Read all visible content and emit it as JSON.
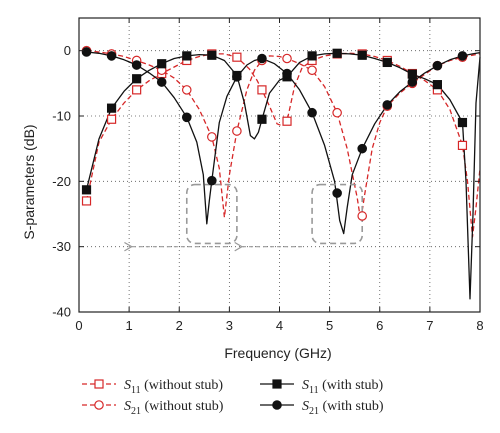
{
  "chart_data": {
    "type": "line",
    "xlabel": "Frequency (GHz)",
    "ylabel": "S-parameters (dB)",
    "xlim": [
      0,
      8
    ],
    "ylim": [
      -40,
      5
    ],
    "xticks": [
      0,
      1,
      2,
      3,
      4,
      5,
      6,
      7,
      8
    ],
    "yticks": [
      0,
      -10,
      -20,
      -30,
      -40
    ],
    "grid": true,
    "legend_position": "bottom",
    "colors": {
      "without_stub": "#d62728",
      "with_stub": "#111111"
    },
    "series": [
      {
        "key": "s11_without",
        "name_sym": "S",
        "name_sub": "11",
        "name_rest": " (without stub)",
        "line": "dashed",
        "marker": "open-square",
        "color": "#d62728",
        "x": [
          0.15,
          0.65,
          1.15,
          1.65,
          2.15,
          2.65,
          3.15,
          3.65,
          4.15,
          4.65,
          5.15,
          5.65,
          6.15,
          6.65,
          7.15,
          7.65
        ],
        "y": [
          -23,
          -10.5,
          -6,
          -3.5,
          -1.5,
          -0.5,
          -1,
          -6,
          -10.8,
          -1.5,
          -0.5,
          -0.5,
          -1.5,
          -3.5,
          -6,
          -14.5
        ],
        "curve": [
          [
            0.15,
            -23
          ],
          [
            0.4,
            -14
          ],
          [
            0.65,
            -10.5
          ],
          [
            0.9,
            -8
          ],
          [
            1.15,
            -6
          ],
          [
            1.4,
            -4.6
          ],
          [
            1.65,
            -3.5
          ],
          [
            1.9,
            -2.5
          ],
          [
            2.15,
            -1.5
          ],
          [
            2.4,
            -0.9
          ],
          [
            2.65,
            -0.5
          ],
          [
            2.9,
            -0.5
          ],
          [
            3.15,
            -1
          ],
          [
            3.4,
            -2.8
          ],
          [
            3.55,
            -4.5
          ],
          [
            3.65,
            -6
          ],
          [
            3.8,
            -8.5
          ],
          [
            3.95,
            -11.2
          ],
          [
            4.05,
            -11.5
          ],
          [
            4.15,
            -10.8
          ],
          [
            4.3,
            -5.5
          ],
          [
            4.45,
            -2.6
          ],
          [
            4.65,
            -1.5
          ],
          [
            4.9,
            -0.8
          ],
          [
            5.15,
            -0.5
          ],
          [
            5.4,
            -0.4
          ],
          [
            5.65,
            -0.5
          ],
          [
            5.9,
            -0.9
          ],
          [
            6.15,
            -1.5
          ],
          [
            6.4,
            -2.4
          ],
          [
            6.65,
            -3.5
          ],
          [
            6.9,
            -4.6
          ],
          [
            7.15,
            -6
          ],
          [
            7.4,
            -9
          ],
          [
            7.65,
            -14.5
          ],
          [
            7.75,
            -20
          ],
          [
            7.85,
            -28.5
          ],
          [
            7.92,
            -24
          ],
          [
            8,
            -18
          ]
        ]
      },
      {
        "key": "s21_without",
        "name_sym": "S",
        "name_sub": "21",
        "name_rest": " (without stub)",
        "line": "dashed",
        "marker": "open-circle",
        "color": "#d62728",
        "x": [
          0.15,
          0.65,
          1.15,
          1.65,
          2.15,
          2.65,
          3.15,
          3.65,
          4.15,
          4.65,
          5.15,
          5.65,
          6.15,
          6.65,
          7.15,
          7.65
        ],
        "y": [
          0,
          -0.5,
          -1.5,
          -3,
          -6,
          -13.2,
          -12.3,
          -1.5,
          -1.2,
          -3,
          -9.5,
          -25.3,
          -8.5,
          -5,
          -2.3,
          -1
        ],
        "curve": [
          [
            0.15,
            0
          ],
          [
            0.4,
            -0.2
          ],
          [
            0.65,
            -0.5
          ],
          [
            0.9,
            -0.9
          ],
          [
            1.15,
            -1.5
          ],
          [
            1.4,
            -2.2
          ],
          [
            1.65,
            -3
          ],
          [
            1.9,
            -4.2
          ],
          [
            2.15,
            -6
          ],
          [
            2.4,
            -9
          ],
          [
            2.65,
            -13.2
          ],
          [
            2.8,
            -18
          ],
          [
            2.9,
            -25.5
          ],
          [
            3.0,
            -19
          ],
          [
            3.15,
            -12.3
          ],
          [
            3.35,
            -6
          ],
          [
            3.5,
            -3
          ],
          [
            3.65,
            -1.5
          ],
          [
            3.8,
            -0.8
          ],
          [
            4.0,
            -0.9
          ],
          [
            4.15,
            -1.2
          ],
          [
            4.4,
            -2
          ],
          [
            4.65,
            -3
          ],
          [
            4.9,
            -5.5
          ],
          [
            5.15,
            -9.5
          ],
          [
            5.35,
            -15
          ],
          [
            5.55,
            -22.5
          ],
          [
            5.62,
            -26
          ],
          [
            5.7,
            -22
          ],
          [
            5.85,
            -15
          ],
          [
            6.0,
            -11
          ],
          [
            6.15,
            -8.5
          ],
          [
            6.4,
            -6.5
          ],
          [
            6.65,
            -5
          ],
          [
            6.9,
            -3.6
          ],
          [
            7.15,
            -2.3
          ],
          [
            7.4,
            -1.5
          ],
          [
            7.65,
            -1
          ],
          [
            7.85,
            -0.7
          ],
          [
            8,
            -0.5
          ]
        ]
      },
      {
        "key": "s11_with",
        "name_sym": "S",
        "name_sub": "11",
        "name_rest": " (with stub)",
        "line": "solid",
        "marker": "filled-square",
        "color": "#111111",
        "x": [
          0.15,
          0.65,
          1.15,
          1.65,
          2.15,
          2.65,
          3.15,
          3.65,
          4.15,
          4.65,
          5.15,
          5.65,
          6.15,
          6.65,
          7.15,
          7.65
        ],
        "y": [
          -21.3,
          -8.8,
          -4.3,
          -2,
          -0.8,
          -0.7,
          -3.8,
          -10.5,
          -4,
          -0.8,
          -0.4,
          -0.7,
          -1.8,
          -3.6,
          -5.2,
          -11
        ],
        "curve": [
          [
            0.15,
            -21.3
          ],
          [
            0.4,
            -13.5
          ],
          [
            0.65,
            -8.8
          ],
          [
            0.9,
            -6.2
          ],
          [
            1.15,
            -4.3
          ],
          [
            1.4,
            -3
          ],
          [
            1.65,
            -2
          ],
          [
            1.9,
            -1.2
          ],
          [
            2.15,
            -0.8
          ],
          [
            2.4,
            -0.6
          ],
          [
            2.65,
            -0.7
          ],
          [
            2.9,
            -1.5
          ],
          [
            3.15,
            -3.8
          ],
          [
            3.3,
            -8
          ],
          [
            3.42,
            -13
          ],
          [
            3.5,
            -13.5
          ],
          [
            3.58,
            -12.5
          ],
          [
            3.65,
            -10.5
          ],
          [
            3.8,
            -6.5
          ],
          [
            4.0,
            -4.5
          ],
          [
            4.15,
            -4
          ],
          [
            4.4,
            -1.8
          ],
          [
            4.65,
            -0.8
          ],
          [
            4.9,
            -0.5
          ],
          [
            5.15,
            -0.4
          ],
          [
            5.4,
            -0.5
          ],
          [
            5.65,
            -0.7
          ],
          [
            5.9,
            -1.2
          ],
          [
            6.15,
            -1.8
          ],
          [
            6.4,
            -2.6
          ],
          [
            6.65,
            -3.6
          ],
          [
            6.9,
            -4.3
          ],
          [
            7.15,
            -5.2
          ],
          [
            7.4,
            -7.5
          ],
          [
            7.65,
            -11
          ],
          [
            7.72,
            -20
          ],
          [
            7.8,
            -38
          ],
          [
            7.86,
            -25
          ],
          [
            7.92,
            -8
          ],
          [
            8,
            -1
          ]
        ]
      },
      {
        "key": "s21_with",
        "name_sym": "S",
        "name_sub": "21",
        "name_rest": " (with stub)",
        "line": "solid",
        "marker": "filled-circle",
        "color": "#111111",
        "x": [
          0.15,
          0.65,
          1.15,
          1.65,
          2.15,
          2.65,
          3.15,
          3.65,
          4.15,
          4.65,
          5.15,
          5.65,
          6.15,
          6.65,
          7.15,
          7.65
        ],
        "y": [
          -0.2,
          -0.8,
          -2.2,
          -4.8,
          -10.2,
          -19.9,
          -4,
          -1.2,
          -3.5,
          -9.5,
          -21.8,
          -15,
          -8.3,
          -4.8,
          -2.3,
          -0.8
        ],
        "curve": [
          [
            0.15,
            -0.2
          ],
          [
            0.4,
            -0.4
          ],
          [
            0.65,
            -0.8
          ],
          [
            0.9,
            -1.4
          ],
          [
            1.15,
            -2.2
          ],
          [
            1.4,
            -3.4
          ],
          [
            1.65,
            -4.8
          ],
          [
            1.9,
            -7.2
          ],
          [
            2.15,
            -10.2
          ],
          [
            2.35,
            -14
          ],
          [
            2.48,
            -19
          ],
          [
            2.55,
            -26.5
          ],
          [
            2.6,
            -23
          ],
          [
            2.65,
            -19.9
          ],
          [
            2.8,
            -11
          ],
          [
            2.95,
            -7
          ],
          [
            3.15,
            -4
          ],
          [
            3.35,
            -2.2
          ],
          [
            3.5,
            -1.5
          ],
          [
            3.65,
            -1.2
          ],
          [
            3.9,
            -2
          ],
          [
            4.15,
            -3.5
          ],
          [
            4.4,
            -6
          ],
          [
            4.65,
            -9.5
          ],
          [
            4.9,
            -14.5
          ],
          [
            5.1,
            -20
          ],
          [
            5.2,
            -26
          ],
          [
            5.28,
            -28
          ],
          [
            5.35,
            -24
          ],
          [
            5.45,
            -19
          ],
          [
            5.65,
            -15
          ],
          [
            5.9,
            -11.2
          ],
          [
            6.15,
            -8.3
          ],
          [
            6.4,
            -6.3
          ],
          [
            6.65,
            -4.8
          ],
          [
            6.9,
            -3.4
          ],
          [
            7.15,
            -2.3
          ],
          [
            7.4,
            -1.4
          ],
          [
            7.65,
            -0.8
          ],
          [
            7.85,
            -0.5
          ],
          [
            8,
            -0.3
          ]
        ]
      }
    ],
    "annotations": [
      {
        "type": "dashed-rounded-box",
        "x": [
          2.15,
          3.15
        ],
        "y": [
          -20.5,
          -29.5
        ]
      },
      {
        "type": "dashed-rounded-box",
        "x": [
          4.65,
          5.65
        ],
        "y": [
          -20.5,
          -29.5
        ]
      },
      {
        "type": "dashed-arrow-left",
        "from": [
          2.95,
          -30
        ],
        "to": [
          1.05,
          -30
        ]
      },
      {
        "type": "dashed-arrow-left",
        "from": [
          4.45,
          -30
        ],
        "to": [
          3.25,
          -30
        ]
      }
    ]
  }
}
